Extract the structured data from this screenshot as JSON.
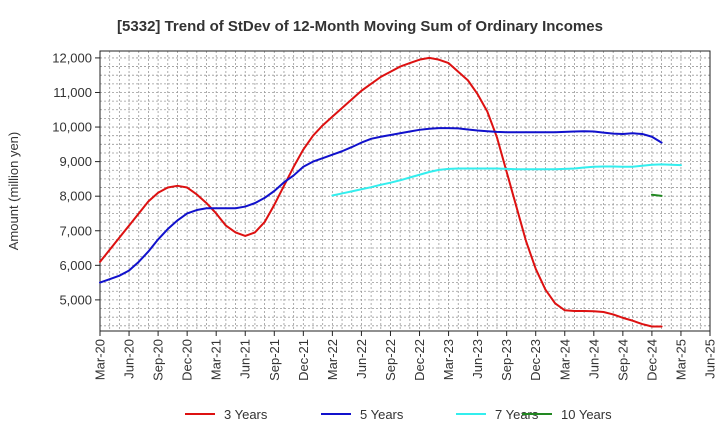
{
  "chart_data": {
    "type": "line",
    "title": "[5332]  Trend of StDev of 12-Month Moving Sum of Ordinary Incomes",
    "xlabel": "",
    "ylabel": "Amount (million yen)",
    "ylim": [
      4100,
      12200
    ],
    "grid": true,
    "legend_position": "bottom",
    "x_ticks": [
      "Mar-20",
      "Jun-20",
      "Sep-20",
      "Dec-20",
      "Mar-21",
      "Jun-21",
      "Sep-21",
      "Dec-21",
      "Mar-22",
      "Jun-22",
      "Sep-22",
      "Dec-22",
      "Mar-23",
      "Jun-23",
      "Sep-23",
      "Dec-23",
      "Mar-24",
      "Jun-24",
      "Sep-24",
      "Dec-24",
      "Mar-25",
      "Jun-25"
    ],
    "y_ticks": [
      5000,
      6000,
      7000,
      8000,
      9000,
      10000,
      11000,
      12000
    ],
    "y_tick_labels": [
      "5,000",
      "6,000",
      "7,000",
      "8,000",
      "9,000",
      "10,000",
      "11,000",
      "12,000"
    ],
    "series": [
      {
        "name": "3 Years",
        "color": "#dd1111",
        "start_index": 0,
        "values": [
          6100,
          6450,
          6800,
          7150,
          7500,
          7850,
          8100,
          8250,
          8300,
          8250,
          8050,
          7800,
          7500,
          7150,
          6950,
          6850,
          6950,
          7250,
          7750,
          8300,
          8850,
          9350,
          9750,
          10050,
          10300,
          10550,
          10800,
          11050,
          11250,
          11450,
          11600,
          11750,
          11850,
          11950,
          12000,
          11950,
          11850,
          11600,
          11350,
          10950,
          10450,
          9700,
          8700,
          7700,
          6700,
          5900,
          5300,
          4900,
          4700,
          4680,
          4680,
          4670,
          4650,
          4580,
          4480,
          4400,
          4300,
          4230,
          4230
        ]
      },
      {
        "name": "5 Years",
        "color": "#1111cc",
        "start_index": 0,
        "values": [
          5500,
          5600,
          5700,
          5850,
          6100,
          6400,
          6750,
          7050,
          7300,
          7500,
          7600,
          7650,
          7650,
          7650,
          7650,
          7700,
          7800,
          7950,
          8150,
          8400,
          8600,
          8850,
          9000,
          9100,
          9200,
          9300,
          9420,
          9550,
          9660,
          9720,
          9770,
          9820,
          9870,
          9920,
          9950,
          9970,
          9970,
          9960,
          9930,
          9900,
          9880,
          9860,
          9850,
          9850,
          9850,
          9850,
          9850,
          9850,
          9860,
          9870,
          9880,
          9870,
          9840,
          9810,
          9800,
          9820,
          9800,
          9720,
          9550
        ]
      },
      {
        "name": "7 Years",
        "color": "#33eeee",
        "start_index": 24,
        "values": [
          8020,
          8080,
          8140,
          8200,
          8260,
          8330,
          8390,
          8460,
          8540,
          8620,
          8700,
          8760,
          8790,
          8800,
          8800,
          8800,
          8800,
          8800,
          8790,
          8780,
          8780,
          8780,
          8780,
          8780,
          8790,
          8800,
          8830,
          8850,
          8860,
          8860,
          8850,
          8850,
          8880,
          8910,
          8920,
          8910,
          8900
        ]
      },
      {
        "name": "10 Years",
        "color": "#228822",
        "start_index": 57,
        "values": [
          8040,
          8010
        ]
      }
    ]
  }
}
